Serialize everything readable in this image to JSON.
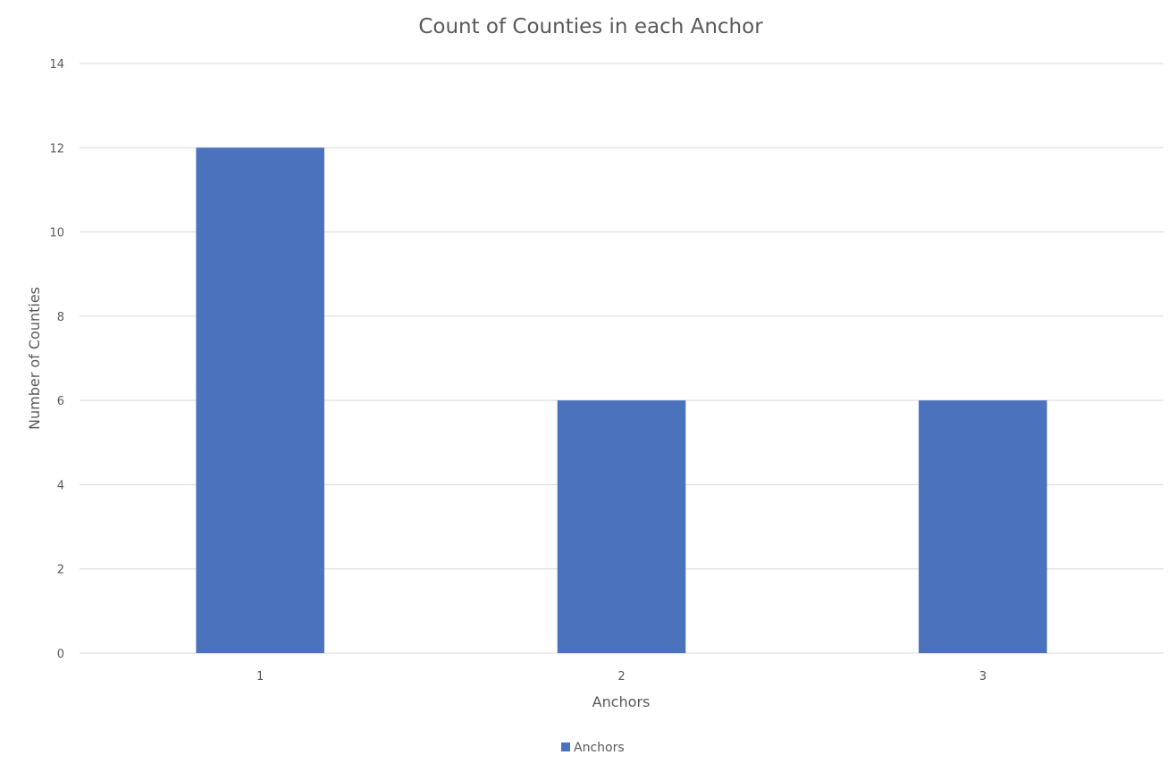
{
  "chart_data": {
    "type": "bar",
    "title": "Count of Counties in each Anchor",
    "xlabel": "Anchors",
    "ylabel": "Number of Counties",
    "categories": [
      "1",
      "2",
      "3"
    ],
    "series": [
      {
        "name": "Anchors",
        "values": [
          12,
          6,
          6
        ],
        "color": "#4a72bd"
      }
    ],
    "ylim": [
      0,
      14
    ],
    "yticks": [
      "0",
      "2",
      "4",
      "6",
      "8",
      "10",
      "12",
      "14"
    ],
    "grid": true,
    "legend_position": "bottom"
  }
}
